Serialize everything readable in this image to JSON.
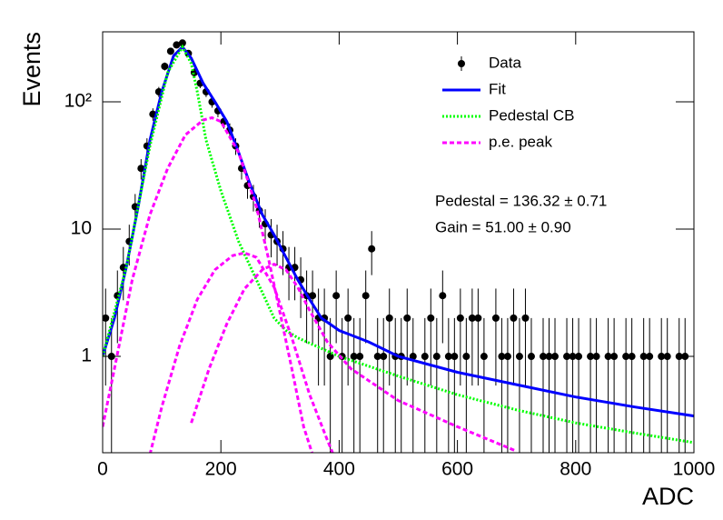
{
  "chart_data": {
    "type": "line",
    "xlabel": "ADC",
    "ylabel": "Events",
    "log_y": true,
    "xlim": [
      0,
      1000
    ],
    "ylim": [
      0.175,
      355
    ],
    "xticks": [
      0,
      200,
      400,
      600,
      800,
      1000
    ],
    "yticks": [
      1,
      10,
      {
        "value": 100,
        "label": "10²"
      }
    ],
    "legend": "upper right",
    "annotations": [
      "Pedestal = 136.32 ± 0.71",
      "Gain = 51.00 ± 0.90"
    ],
    "series": [
      {
        "name": "Data",
        "color": "#000000",
        "style": "points",
        "x": [
          5,
          15,
          25,
          35,
          45,
          55,
          65,
          75,
          85,
          95,
          105,
          115,
          125,
          135,
          145,
          155,
          165,
          175,
          185,
          195,
          205,
          215,
          225,
          235,
          245,
          255,
          265,
          275,
          285,
          295,
          305,
          315,
          325,
          335,
          345,
          355,
          365,
          375,
          385,
          395,
          405,
          415,
          425,
          435,
          445,
          455,
          465,
          475,
          485,
          495,
          505,
          515,
          525,
          535,
          545,
          555,
          565,
          575,
          585,
          595,
          605,
          615,
          625,
          635,
          645,
          655,
          665,
          675,
          685,
          695,
          705,
          715,
          725,
          735,
          745,
          755,
          765,
          775,
          785,
          795,
          805,
          815,
          825,
          835,
          845,
          855,
          865,
          875,
          885,
          895,
          905,
          915,
          925,
          935,
          945,
          955,
          965,
          975,
          985,
          995
        ],
        "values": [
          2,
          1,
          3,
          5,
          8,
          15,
          30,
          45,
          80,
          120,
          190,
          250,
          280,
          290,
          240,
          170,
          140,
          120,
          100,
          85,
          70,
          60,
          45,
          30,
          22,
          18,
          14,
          11,
          9,
          8,
          7,
          5,
          5,
          4,
          3,
          3,
          2,
          2,
          1,
          3,
          1,
          2,
          1,
          1,
          3,
          7,
          1,
          1,
          2,
          1,
          1,
          2,
          1,
          null,
          1,
          2,
          1,
          3,
          1,
          1,
          2,
          1,
          2,
          2,
          1,
          null,
          2,
          1,
          1,
          2,
          1,
          2,
          1,
          null,
          1,
          1,
          1,
          null,
          1,
          1,
          1,
          null,
          1,
          1,
          null,
          1,
          1,
          null,
          1,
          1,
          null,
          1,
          1,
          null,
          1,
          1,
          null,
          1,
          1,
          null
        ],
        "errors": [
          1.41,
          1,
          1.73,
          2.24,
          2.83,
          3.87,
          5.48,
          6.71,
          8.94,
          10.95,
          13.78,
          15.81,
          16.73,
          17.03,
          15.49,
          13.04,
          11.83,
          10.95,
          10,
          9.22,
          8.37,
          7.75,
          6.71,
          5.48,
          4.69,
          4.24,
          3.74,
          3.32,
          3,
          2.83,
          2.65,
          2.24,
          2.24,
          2,
          1.73,
          1.73,
          1.41,
          1.41,
          1,
          1.73,
          1,
          1.41,
          1,
          1,
          1.73,
          2.65,
          1,
          1,
          1.41,
          1,
          1,
          1.41,
          1,
          null,
          1,
          1.41,
          1,
          1.73,
          1,
          1,
          1.41,
          1,
          1.41,
          1.41,
          1,
          null,
          1.41,
          1,
          1,
          1.41,
          1,
          1.41,
          1,
          null,
          1,
          1,
          1,
          null,
          1,
          1,
          1,
          null,
          1,
          1,
          null,
          1,
          1,
          null,
          1,
          1,
          null,
          1,
          1,
          null,
          1,
          1,
          null,
          1,
          1,
          null
        ]
      },
      {
        "name": "Fit",
        "color": "#0000ff",
        "style": "solid",
        "x": [
          0,
          20,
          40,
          60,
          80,
          100,
          120,
          135,
          150,
          170,
          190,
          210,
          230,
          250,
          270,
          290,
          310,
          330,
          350,
          370,
          400,
          450,
          500,
          600,
          700,
          800,
          900,
          1000
        ],
        "values": [
          1,
          2,
          5,
          15,
          50,
          120,
          230,
          270,
          220,
          140,
          100,
          70,
          40,
          22,
          13,
          9,
          6,
          4,
          2.8,
          2,
          1.6,
          1.3,
          1,
          0.75,
          0.6,
          0.48,
          0.4,
          0.34
        ]
      },
      {
        "name": "Pedestal CB",
        "color": "#00ff00",
        "style": "dotted",
        "x": [
          0,
          40,
          80,
          110,
          135,
          150,
          160,
          175,
          200,
          230,
          260,
          290,
          310,
          330,
          400,
          500,
          600,
          700,
          800,
          900,
          1000
        ],
        "values": [
          1,
          5,
          45,
          170,
          270,
          200,
          120,
          50,
          20,
          8,
          4,
          2,
          1.6,
          1.4,
          1,
          0.7,
          0.5,
          0.38,
          0.3,
          0.25,
          0.21
        ]
      },
      {
        "name": "p.e. peak",
        "color": "#ff00ff",
        "style": "dashed",
        "curves": [
          {
            "x": [
              0,
              20,
              50,
              80,
              110,
              140,
              170,
              185,
              200,
              230,
              260,
              280,
              300,
              320,
              340,
              355
            ],
            "values": [
              0.28,
              0.8,
              4,
              13,
              30,
              55,
              72,
              75,
              70,
              40,
              15,
              6,
              2.2,
              0.8,
              0.28,
              0.17
            ]
          },
          {
            "x": [
              80,
              100,
              130,
              160,
              190,
              220,
              240,
              260,
              290,
              320,
              350,
              380,
              390
            ],
            "values": [
              0.17,
              0.4,
              1.2,
              2.8,
              4.8,
              6.2,
              6.5,
              6,
              3.5,
              1.4,
              0.5,
              0.22,
              0.17
            ]
          },
          {
            "x": [
              150,
              180,
              210,
              240,
              270,
              290,
              310,
              330,
              350,
              380,
              420,
              500,
              600,
              700
            ],
            "values": [
              0.3,
              0.8,
              1.8,
              3.4,
              4.8,
              5.3,
              4.8,
              3.5,
              2.3,
              1.3,
              0.8,
              0.45,
              0.28,
              0.18
            ]
          }
        ]
      }
    ]
  }
}
